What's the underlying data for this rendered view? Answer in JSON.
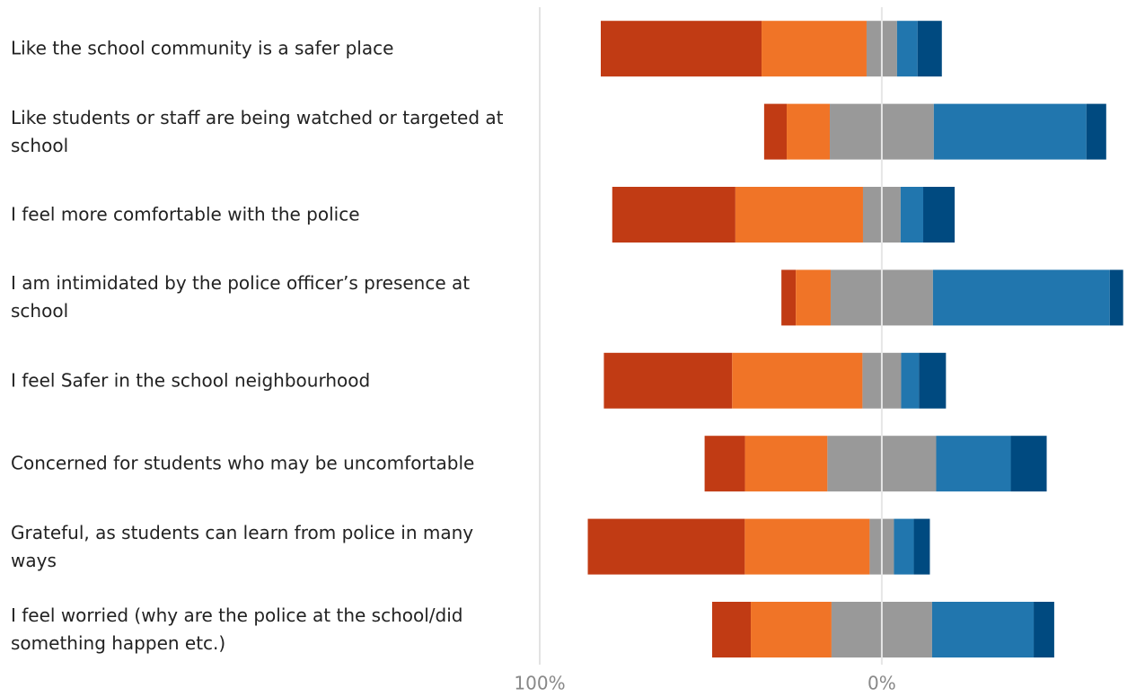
{
  "chart_data": {
    "type": "diverging-bar",
    "categories": [
      "Like the school community is a safer place",
      "Like students or staff are being watched or targeted at school",
      "I feel more comfortable with the police",
      "I am intimidated by the police officer’s presence at school",
      "I feel Safer in the school neighbourhood",
      "Concerned for students who may be uncomfortable",
      "Grateful, as students can learn from police in many ways",
      "I feel worried (why are the police at the school/did something happen etc.)"
    ],
    "series": [
      {
        "color": "#c13b14",
        "values": [
          47.0,
          6.6,
          36.0,
          4.2,
          37.5,
          11.8,
          45.9,
          11.3
        ]
      },
      {
        "color": "#f07427",
        "values": [
          30.7,
          12.6,
          37.3,
          10.2,
          38.1,
          24.1,
          36.5,
          23.6
        ]
      },
      {
        "color": "#999999",
        "values": [
          8.9,
          30.4,
          11.0,
          29.9,
          11.3,
          31.8,
          7.1,
          29.4
        ]
      },
      {
        "color": "#2176ae",
        "values": [
          6.0,
          44.6,
          6.6,
          51.7,
          5.2,
          21.8,
          5.8,
          29.7
        ]
      },
      {
        "color": "#004a80",
        "values": [
          7.1,
          5.8,
          9.2,
          3.9,
          7.9,
          10.5,
          4.7,
          6.0
        ]
      }
    ],
    "xlim": [
      -100,
      73
    ],
    "xticks": [
      {
        "value": -100,
        "label": "100%"
      },
      {
        "value": 0,
        "label": "0%"
      }
    ],
    "grid": true
  }
}
